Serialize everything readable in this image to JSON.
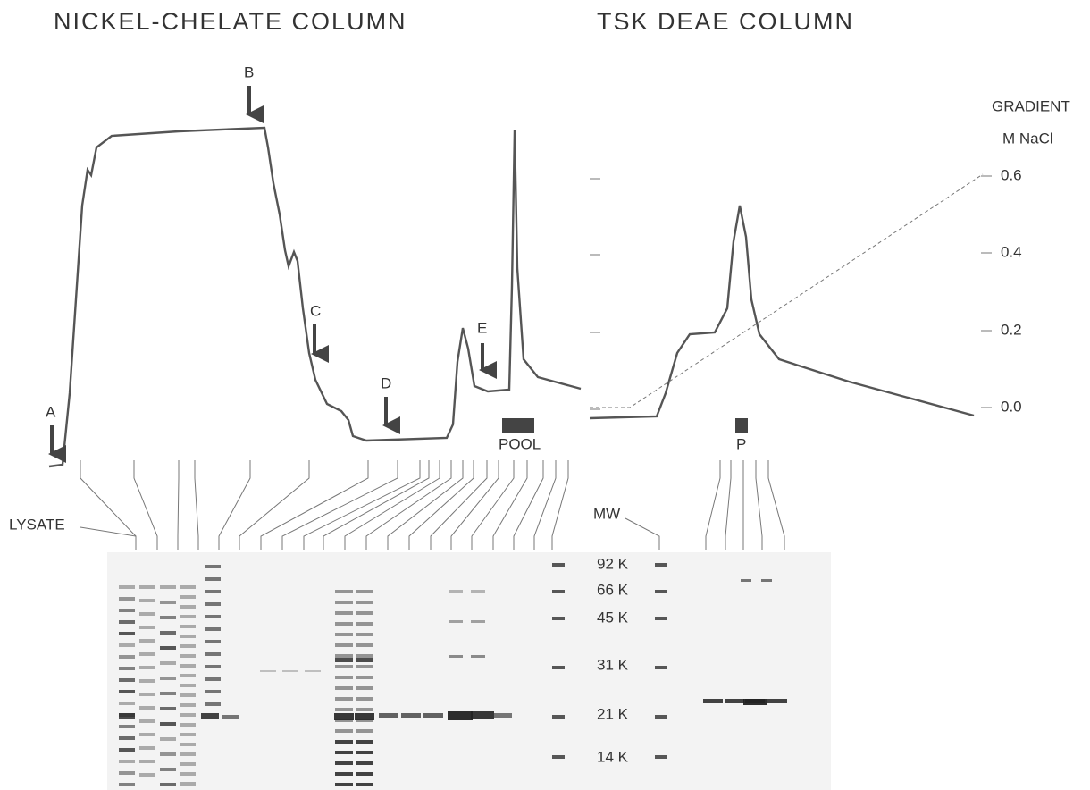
{
  "left_panel": {
    "title": "NICKEL-CHELATE COLUMN",
    "markers": [
      "A",
      "B",
      "C",
      "D",
      "E"
    ],
    "pool_label": "POOL",
    "lane_label": "LYSATE"
  },
  "right_panel": {
    "title": "TSK DEAE COLUMN",
    "axis_title": [
      "GRADIENT",
      "M NaCl"
    ],
    "axis_ticks": [
      "0.6",
      "0.4",
      "0.2",
      "0.0"
    ],
    "pool_label": "P"
  },
  "gel": {
    "marker_label": "MW",
    "marker_sizes": [
      "92 K",
      "66 K",
      "45 K",
      "31 K",
      "21 K",
      "14 K"
    ]
  }
}
